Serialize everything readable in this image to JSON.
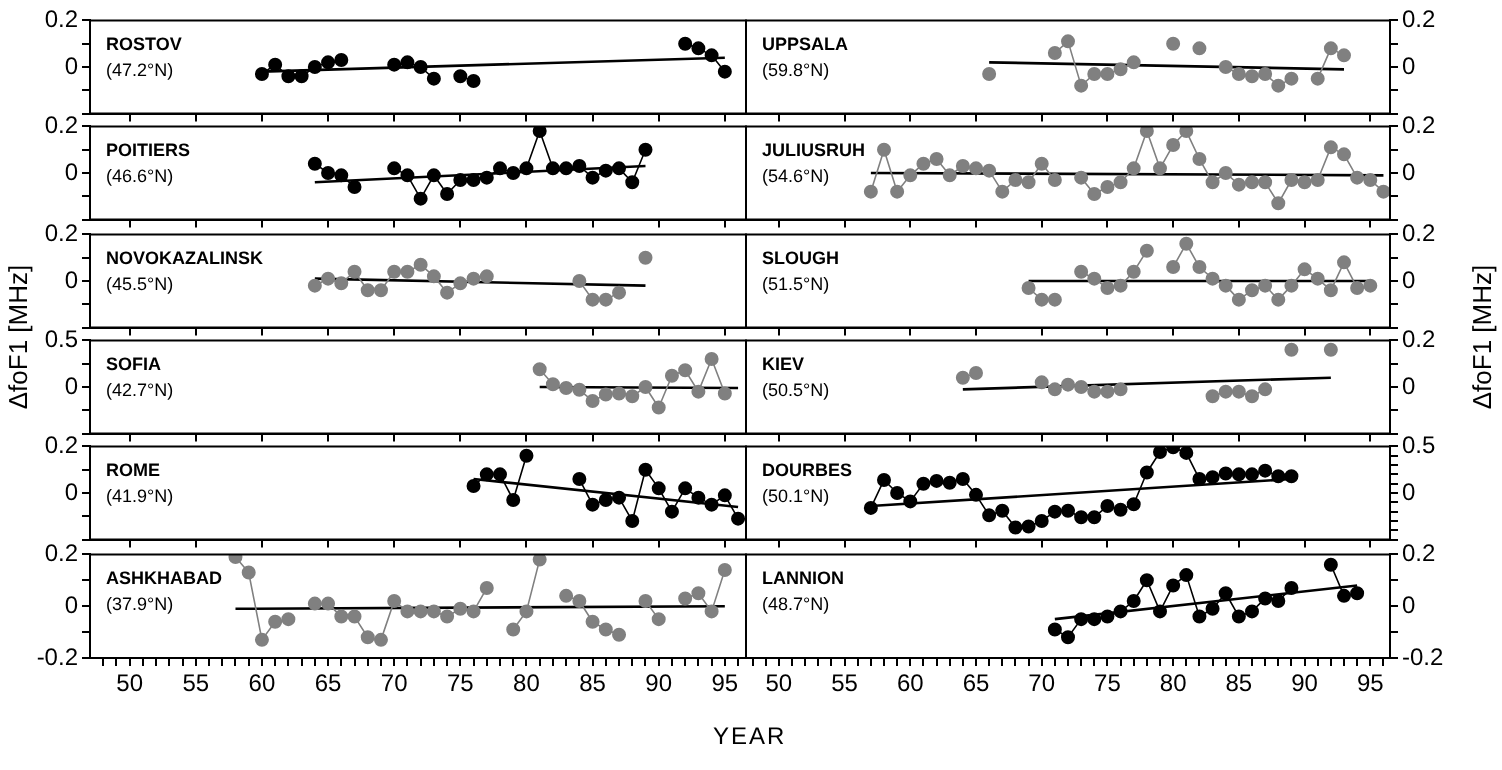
{
  "chart_data": [
    {
      "type": "line",
      "title": "ROSTOV",
      "subtitle": "(47.2°N)",
      "marker": "circle",
      "line_style": "solid",
      "tick_labels": "y",
      "xlim": [
        47,
        96.6
      ],
      "xticks": [
        50,
        55,
        60,
        65,
        70,
        75,
        80,
        85,
        90,
        95
      ],
      "ylim": [
        -0.2,
        0.2
      ],
      "yticks": [
        {
          "value": -0.2,
          "label": null
        },
        {
          "value": -0.1,
          "label": null
        },
        0,
        {
          "value": 0.1,
          "label": null
        },
        0.2
      ],
      "series": [
        {
          "color": "#000000",
          "x": [
            60,
            61,
            62,
            63,
            64,
            65,
            66,
            67,
            70,
            71,
            72,
            73,
            74,
            75,
            76,
            77,
            92,
            93,
            94,
            95
          ],
          "values": [
            -0.03,
            0.01,
            -0.04,
            -0.04,
            0,
            0.02,
            0.03,
            null,
            0.01,
            0.02,
            0,
            -0.05,
            null,
            -0.04,
            -0.06,
            null,
            0.1,
            0.08,
            0.05,
            -0.02
          ]
        },
        {
          "type": "line",
          "marker": "none",
          "color": "#000000",
          "x": [
            60,
            95
          ],
          "values": [
            -0.02,
            0.04
          ]
        }
      ]
    },
    {
      "type": "line",
      "title": "UPPSALA",
      "subtitle": "(59.8°N)",
      "marker": "circle",
      "line_style": "solid",
      "tick_labels": "y",
      "xlim": [
        47.5,
        96.5
      ],
      "xticks": [
        50,
        55,
        60,
        65,
        70,
        75,
        80,
        85,
        90,
        95
      ],
      "ylim": [
        -0.2,
        0.2
      ],
      "yticks": [
        {
          "value": -0.2,
          "label": null
        },
        {
          "value": -0.1,
          "label": null
        },
        0,
        {
          "value": 0.1,
          "label": null
        },
        0.2
      ],
      "series": [
        {
          "color": "#808080",
          "x": [
            66,
            67,
            71,
            72,
            73,
            74,
            75,
            76,
            77,
            78,
            80,
            81,
            82,
            83,
            84,
            85,
            86,
            87,
            88,
            89,
            90,
            91,
            92,
            93
          ],
          "values": [
            -0.03,
            null,
            0.06,
            0.11,
            -0.08,
            -0.03,
            -0.03,
            -0.01,
            0.02,
            null,
            0.1,
            null,
            0.08,
            null,
            0,
            -0.03,
            -0.04,
            -0.03,
            -0.08,
            -0.05,
            null,
            -0.05,
            0.08,
            0.05
          ]
        },
        {
          "type": "line",
          "marker": "none",
          "color": "#000000",
          "x": [
            66,
            93
          ],
          "values": [
            0.02,
            -0.01
          ]
        }
      ]
    },
    {
      "type": "line",
      "title": "POITIERS",
      "subtitle": "(46.6°N)",
      "marker": "circle",
      "line_style": "solid",
      "tick_labels": "y",
      "xlim": [
        47,
        96.6
      ],
      "xticks": [
        50,
        55,
        60,
        65,
        70,
        75,
        80,
        85,
        90,
        95
      ],
      "ylim": [
        -0.2,
        0.2
      ],
      "yticks": [
        {
          "value": -0.2,
          "label": null
        },
        {
          "value": -0.1,
          "label": null
        },
        0,
        {
          "value": 0.1,
          "label": null
        },
        0.2
      ],
      "series": [
        {
          "color": "#000000",
          "x": [
            64,
            65,
            66,
            67,
            68,
            70,
            71,
            72,
            73,
            74,
            75,
            76,
            77,
            78,
            79,
            80,
            81,
            82,
            83,
            84,
            85,
            86,
            87,
            88,
            89
          ],
          "values": [
            0.04,
            0,
            -0.01,
            -0.06,
            null,
            0.02,
            -0.01,
            -0.11,
            -0.01,
            -0.09,
            -0.03,
            -0.03,
            -0.02,
            0.02,
            0,
            0.02,
            0.18,
            0.02,
            0.02,
            0.03,
            -0.02,
            0.01,
            0.02,
            -0.04,
            0.1
          ]
        },
        {
          "type": "line",
          "marker": "none",
          "color": "#000000",
          "x": [
            64,
            89
          ],
          "values": [
            -0.04,
            0.03
          ]
        }
      ]
    },
    {
      "type": "line",
      "title": "JULIUSRUH",
      "subtitle": "(54.6°N)",
      "marker": "circle",
      "line_style": "solid",
      "tick_labels": "y",
      "xlim": [
        47.5,
        96.5
      ],
      "xticks": [
        50,
        55,
        60,
        65,
        70,
        75,
        80,
        85,
        90,
        95
      ],
      "ylim": [
        -0.2,
        0.2
      ],
      "yticks": [
        {
          "value": -0.2,
          "label": null
        },
        {
          "value": -0.1,
          "label": null
        },
        0,
        {
          "value": 0.1,
          "label": null
        },
        0.2
      ],
      "series": [
        {
          "color": "#808080",
          "x": [
            57,
            58,
            59,
            60,
            61,
            62,
            63,
            64,
            65,
            66,
            67,
            68,
            69,
            70,
            71,
            72,
            73,
            74,
            75,
            76,
            77,
            78,
            79,
            80,
            81,
            82,
            83,
            84,
            85,
            86,
            87,
            88,
            89,
            90,
            91,
            92,
            93,
            94,
            95,
            96
          ],
          "values": [
            -0.08,
            0.1,
            -0.08,
            -0.01,
            0.04,
            0.06,
            -0.01,
            0.03,
            0.02,
            0.01,
            -0.08,
            -0.03,
            -0.04,
            0.04,
            -0.03,
            null,
            -0.02,
            -0.09,
            -0.06,
            -0.04,
            0.02,
            0.18,
            0.02,
            0.12,
            0.18,
            0.06,
            -0.04,
            0,
            -0.05,
            -0.04,
            -0.04,
            -0.13,
            -0.03,
            -0.04,
            -0.03,
            0.11,
            0.08,
            -0.02,
            -0.03,
            -0.08
          ]
        },
        {
          "type": "line",
          "marker": "none",
          "color": "#000000",
          "x": [
            57,
            96
          ],
          "values": [
            0,
            -0.01
          ]
        }
      ]
    },
    {
      "type": "line",
      "title": "NOVOKAZALINSK",
      "subtitle": "(45.5°N)",
      "marker": "circle",
      "line_style": "solid",
      "tick_labels": "y",
      "xlim": [
        47,
        96.6
      ],
      "xticks": [
        50,
        55,
        60,
        65,
        70,
        75,
        80,
        85,
        90,
        95
      ],
      "ylim": [
        -0.2,
        0.2
      ],
      "yticks": [
        {
          "value": -0.2,
          "label": null
        },
        {
          "value": -0.1,
          "label": null
        },
        0,
        {
          "value": 0.1,
          "label": null
        },
        0.2
      ],
      "series": [
        {
          "color": "#808080",
          "x": [
            64,
            65,
            66,
            67,
            68,
            69,
            70,
            71,
            72,
            73,
            74,
            75,
            76,
            77,
            78,
            84,
            85,
            86,
            87,
            88,
            89
          ],
          "values": [
            -0.02,
            0.01,
            -0.01,
            0.04,
            -0.04,
            -0.04,
            0.04,
            0.04,
            0.07,
            0.02,
            -0.05,
            -0.01,
            0.01,
            0.02,
            null,
            0,
            -0.08,
            -0.08,
            -0.05,
            null,
            0.1
          ]
        },
        {
          "type": "line",
          "marker": "none",
          "color": "#000000",
          "x": [
            64,
            89
          ],
          "values": [
            0.01,
            -0.02
          ]
        }
      ]
    },
    {
      "type": "line",
      "title": "SLOUGH",
      "subtitle": "(51.5°N)",
      "marker": "circle",
      "line_style": "solid",
      "tick_labels": "y",
      "xlim": [
        47.5,
        96.5
      ],
      "xticks": [
        50,
        55,
        60,
        65,
        70,
        75,
        80,
        85,
        90,
        95
      ],
      "ylim": [
        -0.2,
        0.2
      ],
      "yticks": [
        {
          "value": -0.2,
          "label": null
        },
        {
          "value": -0.1,
          "label": null
        },
        0,
        {
          "value": 0.1,
          "label": null
        },
        0.2
      ],
      "series": [
        {
          "color": "#808080",
          "x": [
            69,
            70,
            71,
            72,
            73,
            74,
            75,
            76,
            77,
            78,
            79,
            80,
            81,
            82,
            83,
            84,
            85,
            86,
            87,
            88,
            89,
            90,
            91,
            92,
            93,
            94,
            95
          ],
          "values": [
            -0.03,
            -0.08,
            -0.08,
            null,
            0.04,
            0.01,
            -0.03,
            -0.02,
            0.04,
            0.13,
            null,
            0.06,
            0.16,
            0.06,
            0.01,
            -0.02,
            -0.08,
            -0.04,
            -0.02,
            -0.08,
            -0.02,
            0.05,
            0.01,
            -0.04,
            0.08,
            -0.03,
            -0.02
          ]
        },
        {
          "type": "line",
          "marker": "none",
          "color": "#000000",
          "x": [
            69,
            95
          ],
          "values": [
            0,
            0
          ]
        }
      ]
    },
    {
      "type": "line",
      "title": "SOFIA",
      "subtitle": "(42.7°N)",
      "ylabel": "ΔfoF1 [MHz]",
      "marker": "circle",
      "line_style": "solid",
      "tick_labels": "y",
      "xlim": [
        47,
        96.6
      ],
      "xticks": [
        50,
        55,
        60,
        65,
        70,
        75,
        80,
        85,
        90,
        95
      ],
      "ylim": [
        -0.5,
        0.5
      ],
      "yticks": [
        {
          "value": -0.5,
          "label": null
        },
        {
          "value": -0.25,
          "label": null
        },
        0,
        {
          "value": 0.25,
          "label": null
        },
        0.5
      ],
      "series": [
        {
          "color": "#808080",
          "x": [
            81,
            82,
            83,
            84,
            85,
            86,
            87,
            88,
            89,
            90,
            91,
            92,
            93,
            94,
            95
          ],
          "values": [
            0.19,
            0.03,
            -0.01,
            -0.03,
            -0.15,
            -0.08,
            -0.07,
            -0.1,
            0,
            -0.22,
            0.12,
            0.18,
            -0.05,
            0.3,
            -0.07
          ]
        },
        {
          "type": "line",
          "marker": "none",
          "color": "#000000",
          "x": [
            81,
            96
          ],
          "values": [
            0,
            -0.01
          ]
        }
      ]
    },
    {
      "type": "line",
      "title": "KIEV",
      "subtitle": "(50.5°N)",
      "ylabel": "ΔfoF1 [MHz]",
      "marker": "circle",
      "line_style": "solid",
      "tick_labels": "y",
      "xlim": [
        47.5,
        96.5
      ],
      "xticks": [
        50,
        55,
        60,
        65,
        70,
        75,
        80,
        85,
        90,
        95
      ],
      "ylim": [
        -0.2,
        0.2
      ],
      "yticks": [
        {
          "value": -0.2,
          "label": null
        },
        {
          "value": -0.1,
          "label": null
        },
        0,
        {
          "value": 0.1,
          "label": null
        },
        0.2
      ],
      "series": [
        {
          "color": "#808080",
          "x": [
            64,
            65,
            66,
            70,
            71,
            72,
            73,
            74,
            75,
            76,
            77,
            83,
            84,
            85,
            86,
            87,
            88,
            89,
            90,
            92
          ],
          "values": [
            0.04,
            0.06,
            null,
            0.02,
            -0.01,
            0.01,
            0,
            -0.02,
            -0.02,
            -0.01,
            null,
            -0.04,
            -0.02,
            -0.02,
            -0.04,
            -0.01,
            null,
            0.16,
            null,
            0.16
          ]
        },
        {
          "type": "line",
          "marker": "none",
          "color": "#000000",
          "x": [
            64,
            92
          ],
          "values": [
            -0.01,
            0.04
          ]
        }
      ]
    },
    {
      "type": "line",
      "title": "ROME",
      "subtitle": "(41.9°N)",
      "marker": "circle",
      "line_style": "solid",
      "tick_labels": "y",
      "xlim": [
        47,
        96.6
      ],
      "xticks": [
        50,
        55,
        60,
        65,
        70,
        75,
        80,
        85,
        90,
        95
      ],
      "ylim": [
        -0.2,
        0.2
      ],
      "yticks": [
        {
          "value": -0.2,
          "label": null
        },
        {
          "value": -0.1,
          "label": null
        },
        0,
        {
          "value": 0.1,
          "label": null
        },
        0.2
      ],
      "series": [
        {
          "color": "#000000",
          "x": [
            76,
            77,
            78,
            79,
            80,
            81,
            84,
            85,
            86,
            87,
            88,
            89,
            90,
            91,
            92,
            93,
            94,
            95,
            96
          ],
          "values": [
            0.03,
            0.08,
            0.08,
            -0.03,
            0.16,
            null,
            0.06,
            -0.05,
            -0.03,
            -0.02,
            -0.12,
            0.1,
            0.02,
            -0.08,
            0.02,
            -0.02,
            -0.05,
            -0.01,
            -0.11
          ]
        },
        {
          "type": "line",
          "marker": "none",
          "color": "#000000",
          "x": [
            76,
            96
          ],
          "values": [
            0.06,
            -0.06
          ]
        }
      ]
    },
    {
      "type": "line",
      "title": "DOURBES",
      "subtitle": "(50.1°N)",
      "marker": "circle",
      "line_style": "solid",
      "tick_labels": "y",
      "xlim": [
        47.5,
        96.5
      ],
      "xticks": [
        50,
        55,
        60,
        65,
        70,
        75,
        80,
        85,
        90,
        95
      ],
      "ylim": [
        -0.5,
        0.5
      ],
      "yticks": [
        {
          "value": -0.5,
          "label": null
        },
        {
          "value": -0.4,
          "label": null
        },
        {
          "value": -0.3,
          "label": null
        },
        {
          "value": -0.2,
          "label": null
        },
        {
          "value": -0.1,
          "label": null
        },
        0,
        {
          "value": 0.1,
          "label": null
        },
        {
          "value": 0.2,
          "label": null
        },
        {
          "value": 0.3,
          "label": null
        },
        {
          "value": 0.4,
          "label": null
        },
        0.5
      ],
      "series": [
        {
          "color": "#000000",
          "x": [
            57,
            58,
            59,
            60,
            61,
            62,
            63,
            64,
            65,
            66,
            67,
            68,
            69,
            70,
            71,
            72,
            73,
            74,
            75,
            76,
            77,
            78,
            79,
            80,
            81,
            82,
            83,
            84,
            85,
            86,
            87,
            88,
            89
          ],
          "values": [
            -0.16,
            0.14,
            0,
            -0.09,
            0.1,
            0.13,
            0.11,
            0.15,
            -0.02,
            -0.24,
            -0.19,
            -0.37,
            -0.36,
            -0.3,
            -0.2,
            -0.19,
            -0.26,
            -0.26,
            -0.14,
            -0.18,
            -0.12,
            0.22,
            0.44,
            0.49,
            0.43,
            0.15,
            0.17,
            0.21,
            0.2,
            0.2,
            0.24,
            0.18,
            0.18
          ]
        },
        {
          "type": "line",
          "marker": "none",
          "color": "#000000",
          "x": [
            57,
            89
          ],
          "values": [
            -0.14,
            0.15
          ]
        }
      ]
    },
    {
      "type": "line",
      "title": "ASHKHABAD",
      "subtitle": "(37.9°N)",
      "xlabel": "YEAR",
      "marker": "circle",
      "line_style": "solid",
      "xlim": [
        47,
        96.6
      ],
      "xticks": [
        {
          "value": 48,
          "label": null
        },
        {
          "value": 49,
          "label": null
        },
        50,
        {
          "value": 51,
          "label": null
        },
        {
          "value": 52,
          "label": null
        },
        {
          "value": 53,
          "label": null
        },
        {
          "value": 54,
          "label": null
        },
        55,
        {
          "value": 56,
          "label": null
        },
        {
          "value": 57,
          "label": null
        },
        {
          "value": 58,
          "label": null
        },
        {
          "value": 59,
          "label": null
        },
        60,
        {
          "value": 61,
          "label": null
        },
        {
          "value": 62,
          "label": null
        },
        {
          "value": 63,
          "label": null
        },
        {
          "value": 64,
          "label": null
        },
        65,
        {
          "value": 66,
          "label": null
        },
        {
          "value": 67,
          "label": null
        },
        {
          "value": 68,
          "label": null
        },
        {
          "value": 69,
          "label": null
        },
        70,
        {
          "value": 71,
          "label": null
        },
        {
          "value": 72,
          "label": null
        },
        {
          "value": 73,
          "label": null
        },
        {
          "value": 74,
          "label": null
        },
        75,
        {
          "value": 76,
          "label": null
        },
        {
          "value": 77,
          "label": null
        },
        {
          "value": 78,
          "label": null
        },
        {
          "value": 79,
          "label": null
        },
        80,
        {
          "value": 81,
          "label": null
        },
        {
          "value": 82,
          "label": null
        },
        {
          "value": 83,
          "label": null
        },
        {
          "value": 84,
          "label": null
        },
        85,
        {
          "value": 86,
          "label": null
        },
        {
          "value": 87,
          "label": null
        },
        {
          "value": 88,
          "label": null
        },
        {
          "value": 89,
          "label": null
        },
        90,
        {
          "value": 91,
          "label": null
        },
        {
          "value": 92,
          "label": null
        },
        {
          "value": 93,
          "label": null
        },
        {
          "value": 94,
          "label": null
        },
        95,
        {
          "value": 96,
          "label": null
        }
      ],
      "ylim": [
        -0.2,
        0.2
      ],
      "yticks": [
        -0.2,
        {
          "value": -0.1,
          "label": null
        },
        0,
        {
          "value": 0.1,
          "label": null
        },
        0.2
      ],
      "series": [
        {
          "color": "#808080",
          "x": [
            58,
            59,
            60,
            61,
            62,
            63,
            64,
            65,
            66,
            67,
            68,
            69,
            70,
            71,
            72,
            73,
            74,
            75,
            76,
            77,
            78,
            79,
            80,
            81,
            82,
            83,
            84,
            85,
            86,
            87,
            88,
            89,
            90,
            91,
            92,
            93,
            94,
            95
          ],
          "values": [
            0.19,
            0.13,
            -0.13,
            -0.06,
            -0.05,
            null,
            0.01,
            0.01,
            -0.04,
            -0.04,
            -0.12,
            -0.13,
            0.02,
            -0.02,
            -0.02,
            -0.02,
            -0.04,
            -0.01,
            -0.02,
            0.07,
            null,
            -0.09,
            -0.02,
            0.18,
            null,
            0.04,
            0.02,
            -0.06,
            -0.09,
            -0.11,
            null,
            0.02,
            -0.05,
            null,
            0.03,
            0.05,
            -0.02,
            0.14
          ]
        },
        {
          "type": "line",
          "marker": "none",
          "color": "#000000",
          "x": [
            58,
            95
          ],
          "values": [
            -0.01,
            0
          ]
        }
      ]
    },
    {
      "type": "line",
      "title": "LANNION",
      "subtitle": "(48.7°N)",
      "marker": "circle",
      "line_style": "solid",
      "xlim": [
        47.5,
        96.5
      ],
      "xticks": [
        {
          "value": 48,
          "label": null
        },
        {
          "value": 49,
          "label": null
        },
        50,
        {
          "value": 51,
          "label": null
        },
        {
          "value": 52,
          "label": null
        },
        {
          "value": 53,
          "label": null
        },
        {
          "value": 54,
          "label": null
        },
        55,
        {
          "value": 56,
          "label": null
        },
        {
          "value": 57,
          "label": null
        },
        {
          "value": 58,
          "label": null
        },
        {
          "value": 59,
          "label": null
        },
        60,
        {
          "value": 61,
          "label": null
        },
        {
          "value": 62,
          "label": null
        },
        {
          "value": 63,
          "label": null
        },
        {
          "value": 64,
          "label": null
        },
        65,
        {
          "value": 66,
          "label": null
        },
        {
          "value": 67,
          "label": null
        },
        {
          "value": 68,
          "label": null
        },
        {
          "value": 69,
          "label": null
        },
        70,
        {
          "value": 71,
          "label": null
        },
        {
          "value": 72,
          "label": null
        },
        {
          "value": 73,
          "label": null
        },
        {
          "value": 74,
          "label": null
        },
        75,
        {
          "value": 76,
          "label": null
        },
        {
          "value": 77,
          "label": null
        },
        {
          "value": 78,
          "label": null
        },
        {
          "value": 79,
          "label": null
        },
        80,
        {
          "value": 81,
          "label": null
        },
        {
          "value": 82,
          "label": null
        },
        {
          "value": 83,
          "label": null
        },
        {
          "value": 84,
          "label": null
        },
        85,
        {
          "value": 86,
          "label": null
        },
        {
          "value": 87,
          "label": null
        },
        {
          "value": 88,
          "label": null
        },
        {
          "value": 89,
          "label": null
        },
        90,
        {
          "value": 91,
          "label": null
        },
        {
          "value": 92,
          "label": null
        },
        {
          "value": 93,
          "label": null
        },
        {
          "value": 94,
          "label": null
        },
        95,
        {
          "value": 96,
          "label": null
        }
      ],
      "ylim": [
        -0.2,
        0.2
      ],
      "yticks": [
        -0.2,
        {
          "value": -0.1,
          "label": null
        },
        0,
        {
          "value": 0.1,
          "label": null
        },
        0.2
      ],
      "series": [
        {
          "color": "#000000",
          "x": [
            71,
            72,
            73,
            74,
            75,
            76,
            77,
            78,
            79,
            80,
            81,
            82,
            83,
            84,
            85,
            86,
            87,
            88,
            89,
            90,
            91,
            92,
            93,
            94
          ],
          "values": [
            -0.09,
            -0.12,
            -0.05,
            -0.05,
            -0.04,
            -0.02,
            0.02,
            0.1,
            -0.02,
            0.08,
            0.12,
            -0.04,
            -0.01,
            0.05,
            -0.04,
            -0.02,
            0.03,
            0.02,
            0.07,
            null,
            null,
            0.16,
            0.04,
            0.05
          ]
        },
        {
          "type": "line",
          "marker": "none",
          "color": "#000000",
          "x": [
            71,
            94
          ],
          "values": [
            -0.05,
            0.08
          ]
        }
      ]
    }
  ]
}
